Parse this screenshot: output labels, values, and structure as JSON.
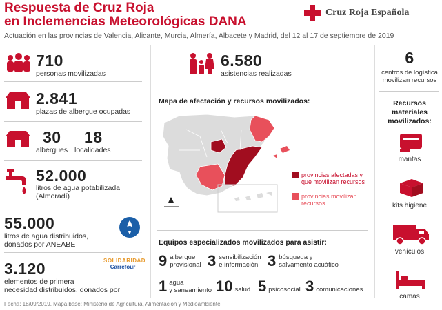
{
  "header": {
    "title_line1": "Respuesta de Cruz Roja",
    "title_line2": "en Inclemencias Meteorológicas DANA",
    "subtitle": "Actuación en las provincias de Valencia, Alicante, Murcia, Almería, Albacete y Madrid, del 12 al 17 de septiembre de 2019",
    "logo_text": "Cruz Roja Española"
  },
  "left": {
    "people": {
      "value": "710",
      "label": "personas movilizadas"
    },
    "shelter_places": {
      "value": "2.841",
      "label": "plazas de albergue ocupadas"
    },
    "shelters": {
      "value": "30",
      "label": "albergues"
    },
    "localities": {
      "value": "18",
      "label": "localidades"
    },
    "water": {
      "value": "52.000",
      "label1": "litros de agua potabilizada",
      "label2": "(Almoradí)"
    },
    "aneabe": {
      "value": "55.000",
      "label1": "litros de agua distribuidos,",
      "label2": "donados por ANEABE"
    },
    "solidaridad": {
      "value": "3.120",
      "label1": "elementos de primera",
      "label2": "necesidad distribuidos, donados por",
      "brand1": "SOLIDARIDAD",
      "brand2": "Carrefour"
    }
  },
  "center": {
    "assistance": {
      "value": "6.580",
      "label": "asistencias realizadas"
    },
    "map_title": "Mapa de afectación y recursos movilizados:",
    "legend": [
      {
        "label1": "provincias afectadas y",
        "label2": "que movilizan recursos",
        "color": "#a10d1f"
      },
      {
        "label1": "provincias movilizan",
        "label2": "recursos",
        "color": "#e8505b"
      }
    ],
    "equip_title": "Equipos especializados movilizados para asistir:",
    "equip": [
      {
        "num": "9",
        "l1": "albergue",
        "l2": "provisional"
      },
      {
        "num": "3",
        "l1": "sensibilización",
        "l2": "e información"
      },
      {
        "num": "3",
        "l1": "búsqueda y",
        "l2": "salvamento acuático"
      },
      {
        "num": "1",
        "l1": "agua",
        "l2": "y saneamiento"
      },
      {
        "num": "10",
        "l1": "salud",
        "l2": ""
      },
      {
        "num": "5",
        "l1": "psicosocial",
        "l2": ""
      },
      {
        "num": "3",
        "l1": "comunicaciones",
        "l2": ""
      }
    ]
  },
  "right": {
    "logistics": {
      "value": "6",
      "label1": "centros de logística",
      "label2": "movilizan recursos"
    },
    "materials_title1": "Recursos",
    "materials_title2": "materiales",
    "materials_title3": "movilizados:",
    "items": [
      "mantas",
      "kits higiene",
      "vehículos",
      "camas"
    ]
  },
  "footer": "Fecha: 18/09/2019. Mapa base: Ministerio de Agricultura, Alimentación y Medioambiente",
  "colors": {
    "accent": "#c8102e",
    "dark_red": "#a10d1f",
    "light_red": "#e8505b"
  }
}
